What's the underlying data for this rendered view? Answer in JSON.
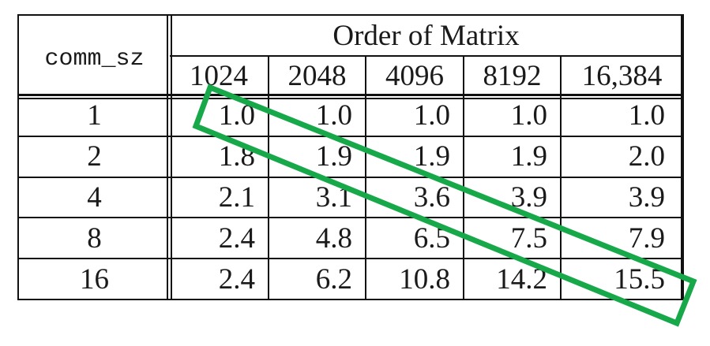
{
  "table": {
    "group_header": "Order of Matrix",
    "row_label_header": "comm_sz",
    "column_headers": [
      "1024",
      "2048",
      "4096",
      "8192",
      "16,384"
    ],
    "rows": [
      {
        "comm_sz": "1",
        "values": [
          "1.0",
          "1.0",
          "1.0",
          "1.0",
          "1.0"
        ]
      },
      {
        "comm_sz": "2",
        "values": [
          "1.8",
          "1.9",
          "1.9",
          "1.9",
          "2.0"
        ]
      },
      {
        "comm_sz": "4",
        "values": [
          "2.1",
          "3.1",
          "3.6",
          "3.9",
          "3.9"
        ]
      },
      {
        "comm_sz": "8",
        "values": [
          "2.4",
          "4.8",
          "6.5",
          "7.5",
          "7.9"
        ]
      },
      {
        "comm_sz": "16",
        "values": [
          "2.4",
          "6.2",
          "10.8",
          "14.2",
          "15.5"
        ]
      }
    ]
  },
  "annotation": {
    "shape": "rotated-rectangle",
    "color": "#17a84a",
    "meaning": "diagonal"
  }
}
